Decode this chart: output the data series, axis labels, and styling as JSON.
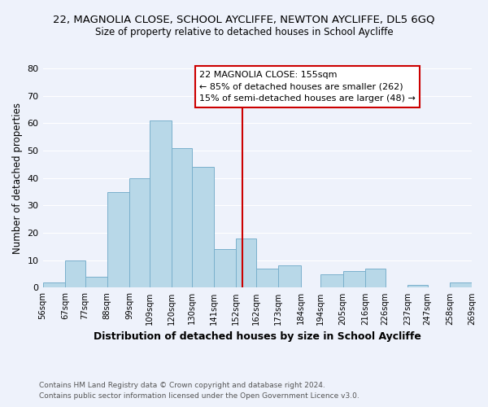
{
  "title": "22, MAGNOLIA CLOSE, SCHOOL AYCLIFFE, NEWTON AYCLIFFE, DL5 6GQ",
  "subtitle": "Size of property relative to detached houses in School Aycliffe",
  "xlabel": "Distribution of detached houses by size in School Aycliffe",
  "ylabel": "Number of detached properties",
  "bar_color": "#b8d8e8",
  "bar_edge_color": "#7ab0cc",
  "bins": [
    56,
    67,
    77,
    88,
    99,
    109,
    120,
    130,
    141,
    152,
    162,
    173,
    184,
    194,
    205,
    216,
    226,
    237,
    247,
    258,
    269
  ],
  "counts": [
    2,
    10,
    4,
    35,
    40,
    61,
    51,
    44,
    14,
    18,
    7,
    8,
    0,
    5,
    6,
    7,
    0,
    1,
    0,
    2
  ],
  "reference_line_x": 155,
  "reference_line_color": "#cc0000",
  "annotation_title": "22 MAGNOLIA CLOSE: 155sqm",
  "annotation_line1": "← 85% of detached houses are smaller (262)",
  "annotation_line2": "15% of semi-detached houses are larger (48) →",
  "annotation_box_color": "#ffffff",
  "annotation_border_color": "#cc0000",
  "tick_labels": [
    "56sqm",
    "67sqm",
    "77sqm",
    "88sqm",
    "99sqm",
    "109sqm",
    "120sqm",
    "130sqm",
    "141sqm",
    "152sqm",
    "162sqm",
    "173sqm",
    "184sqm",
    "194sqm",
    "205sqm",
    "216sqm",
    "226sqm",
    "237sqm",
    "247sqm",
    "258sqm",
    "269sqm"
  ],
  "ylim": [
    0,
    80
  ],
  "yticks": [
    0,
    10,
    20,
    30,
    40,
    50,
    60,
    70,
    80
  ],
  "footer1": "Contains HM Land Registry data © Crown copyright and database right 2024.",
  "footer2": "Contains public sector information licensed under the Open Government Licence v3.0.",
  "background_color": "#eef2fb",
  "grid_color": "#ffffff",
  "plot_bg_color": "#eef2fb"
}
